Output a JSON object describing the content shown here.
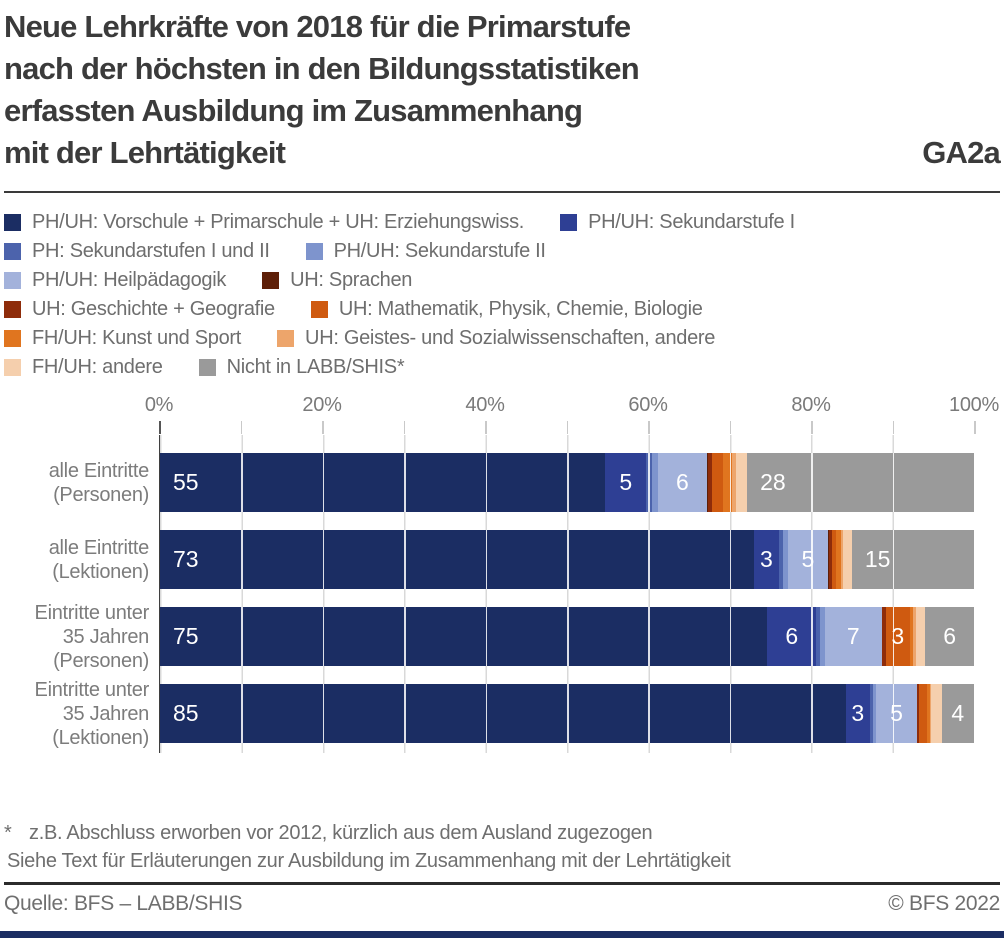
{
  "header": {
    "title_lines": [
      "Neue Lehrkräfte von 2018 für die Primarstufe",
      "nach der höchsten in den Bildungsstatistiken",
      "erfassten Ausbildung im Zusammenhang",
      "mit der Lehrtätigkeit"
    ],
    "code": "GA2a"
  },
  "legend": {
    "items": [
      {
        "label": "PH/UH: Vorschule + Primarschule + UH: Erziehungswiss.",
        "color": "#1b2d63"
      },
      {
        "label": "PH/UH: Sekundarstufe I",
        "color": "#2e3f94"
      },
      {
        "label": "PH: Sekundarstufen I und II",
        "color": "#4c63ac"
      },
      {
        "label": "PH/UH: Sekundarstufe II",
        "color": "#7e94cd"
      },
      {
        "label": "PH/UH: Heilpädagogik",
        "color": "#a3b2db"
      },
      {
        "label": "UH: Sprachen",
        "color": "#5e1f08"
      },
      {
        "label": "UH: Geschichte + Geografie",
        "color": "#8e2c0a"
      },
      {
        "label": "UH: Mathematik, Physik, Chemie, Biologie",
        "color": "#cf5a10"
      },
      {
        "label": "FH/UH: Kunst und Sport",
        "color": "#e0751f"
      },
      {
        "label": "UH: Geistes- und Sozialwissenschaften, andere",
        "color": "#eda56b"
      },
      {
        "label": "FH/UH: andere",
        "color": "#f5cfad"
      },
      {
        "label": "Nicht in LABB/SHIS*",
        "color": "#9a9a9a"
      }
    ]
  },
  "axis": {
    "tick_labels": [
      "0%",
      "20%",
      "40%",
      "60%",
      "80%",
      "100%"
    ],
    "label_step_pct": 20,
    "minor_step_pct": 10
  },
  "chart_data": {
    "type": "bar",
    "stacked": true,
    "orientation": "horizontal",
    "unit": "%",
    "xlim": [
      0,
      100
    ],
    "value_label_min": 3,
    "categories": [
      "alle Eintritte (Personen)",
      "alle Eintritte (Lektionen)",
      "Eintritte unter 35 Jahren (Personen)",
      "Eintritte unter 35 Jahren (Lektionen)"
    ],
    "category_label_lines": [
      [
        "alle Eintritte",
        "(Personen)"
      ],
      [
        "alle Eintritte",
        "(Lektionen)"
      ],
      [
        "Eintritte unter",
        "35 Jahren",
        "(Personen)"
      ],
      [
        "Eintritte unter",
        "35 Jahren",
        "(Lektionen)"
      ]
    ],
    "series": [
      {
        "name": "PH/UH: Vorschule + Primarschule + UH: Erziehungswiss.",
        "color": "#1b2d63",
        "values": [
          55,
          73,
          75,
          85
        ]
      },
      {
        "name": "PH/UH: Sekundarstufe I",
        "color": "#2e3f94",
        "values": [
          5,
          3,
          6,
          3
        ]
      },
      {
        "name": "PH: Sekundarstufen I und II",
        "color": "#4c63ac",
        "values": [
          0.7,
          0.5,
          0.5,
          0.4
        ]
      },
      {
        "name": "PH/UH: Sekundarstufe II",
        "color": "#7e94cd",
        "values": [
          0.8,
          0.6,
          0.6,
          0.4
        ]
      },
      {
        "name": "PH/UH: Heilpädagogik",
        "color": "#a3b2db",
        "values": [
          6,
          5,
          7,
          5
        ]
      },
      {
        "name": "UH: Sprachen",
        "color": "#5e1f08",
        "values": [
          0.2,
          0.1,
          0.1,
          0.1
        ]
      },
      {
        "name": "UH: Geschichte + Geografie",
        "color": "#8e2c0a",
        "values": [
          0.4,
          0.3,
          0.4,
          0.2
        ]
      },
      {
        "name": "UH: Mathematik, Physik, Chemie, Biologie",
        "color": "#cf5a10",
        "values": [
          1.4,
          0.6,
          3,
          1.0
        ]
      },
      {
        "name": "FH/UH: Kunst und Sport",
        "color": "#e0751f",
        "values": [
          1.1,
          0.6,
          0.4,
          0.3
        ]
      },
      {
        "name": "UH: Geistes- und Sozialwissenschaften, andere",
        "color": "#eda56b",
        "values": [
          0.5,
          0.2,
          0.3,
          0.2
        ]
      },
      {
        "name": "FH/UH: andere",
        "color": "#f5cfad",
        "values": [
          1.4,
          1.1,
          1.2,
          1.3
        ]
      },
      {
        "name": "Nicht in LABB/SHIS*",
        "color": "#9a9a9a",
        "values": [
          28,
          15,
          6,
          4
        ]
      }
    ]
  },
  "footnotes": {
    "marker": "*",
    "line1": "z.B. Abschluss erworben vor 2012, kürzlich aus dem Ausland zugezogen",
    "line2": "Siehe Text für Erläuterungen zur Ausbildung im Zusammenhang mit der Lehrtätigkeit"
  },
  "footer": {
    "source": "Quelle: BFS – LABB/SHIS",
    "copyright": "© BFS 2022"
  }
}
